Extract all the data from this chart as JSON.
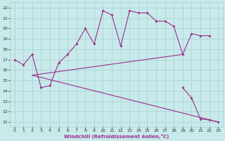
{
  "xlabel": "Windchill (Refroidissement éolien,°C)",
  "bg_color": "#c8eaea",
  "line_color": "#9b2d8e",
  "grid_color": "#a8d0d0",
  "ylim": [
    11,
    22
  ],
  "xlim": [
    0,
    23
  ],
  "yticks": [
    11,
    12,
    13,
    14,
    15,
    16,
    17,
    18,
    19,
    20,
    21,
    22
  ],
  "xticks": [
    0,
    1,
    2,
    3,
    4,
    5,
    6,
    7,
    8,
    9,
    10,
    11,
    12,
    13,
    14,
    15,
    16,
    17,
    18,
    19,
    20,
    21,
    22,
    23
  ],
  "series_main": {
    "x": [
      0,
      1,
      2,
      3,
      4,
      5,
      6,
      7,
      8,
      9,
      10,
      11,
      12,
      13,
      14,
      15,
      16,
      17,
      18,
      19,
      20,
      21,
      22
    ],
    "y": [
      17.0,
      16.5,
      17.5,
      14.3,
      14.5,
      16.7,
      17.5,
      18.5,
      20.0,
      18.5,
      21.7,
      21.3,
      18.3,
      21.7,
      21.5,
      21.5,
      20.7,
      20.7,
      20.2,
      17.5,
      19.5,
      19.3,
      19.3
    ]
  },
  "series_rise": {
    "x": [
      2,
      19
    ],
    "y": [
      15.5,
      17.5
    ]
  },
  "series_fall": {
    "x": [
      2,
      23
    ],
    "y": [
      15.5,
      11.0
    ]
  },
  "series_drop": {
    "x": [
      19,
      20,
      21,
      22,
      23
    ],
    "y": [
      14.3,
      13.3,
      11.3,
      11.2,
      11.0
    ]
  }
}
